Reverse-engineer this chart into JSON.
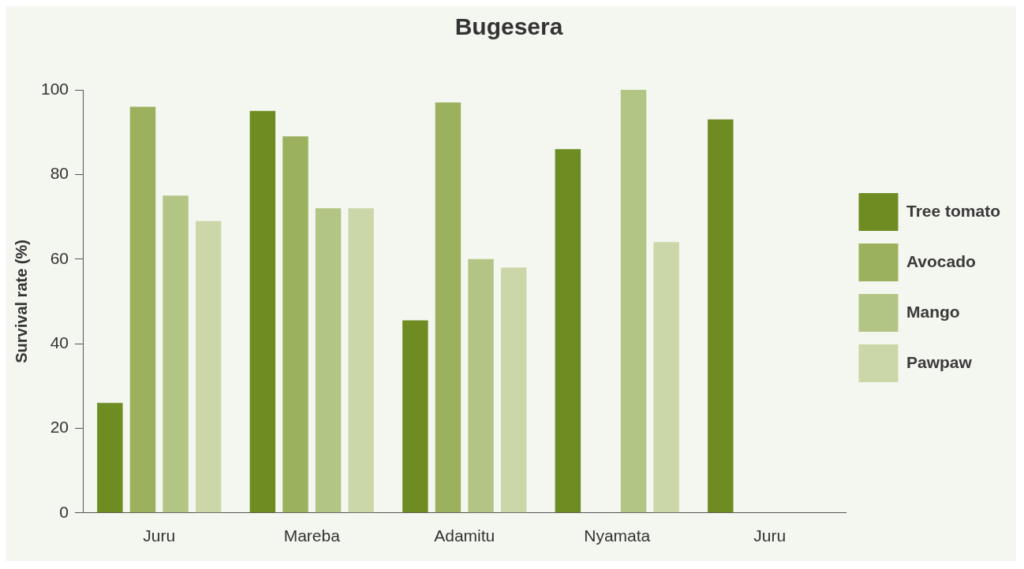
{
  "chart_data": {
    "type": "bar",
    "title": "Bugesera",
    "ylabel": "Survival rate (%)",
    "categories": [
      "Juru",
      "Mareba",
      "Adamitu",
      "Nyamata",
      "Juru"
    ],
    "series": [
      {
        "name": "Tree tomato",
        "color": "#6e8c22",
        "values": [
          26,
          95,
          45.5,
          86,
          93
        ]
      },
      {
        "name": "Avocado",
        "color": "#9bb15e",
        "values": [
          96,
          89,
          97,
          null,
          null
        ]
      },
      {
        "name": "Mango",
        "color": "#b3c585",
        "values": [
          75,
          72,
          60,
          100,
          null
        ]
      },
      {
        "name": "Pawpaw",
        "color": "#cbd7a8",
        "values": [
          69,
          72,
          58,
          64,
          null
        ]
      }
    ],
    "ylim": [
      0,
      100
    ],
    "yticks": [
      0,
      20,
      40,
      60,
      80,
      100
    ],
    "grid": false,
    "legend": "right"
  }
}
